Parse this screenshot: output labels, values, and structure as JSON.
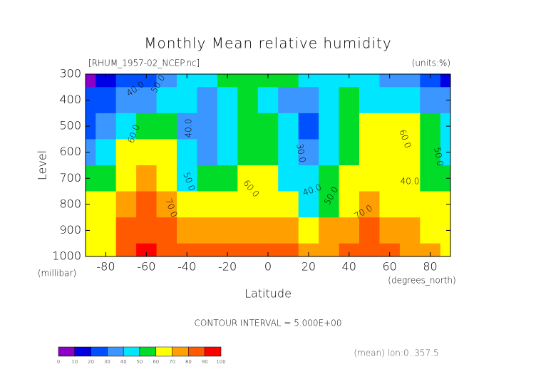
{
  "chart_data": {
    "type": "contour",
    "title": "Monthly Mean relative humidity",
    "subtitle": "[RHUM_1957-02_NCEP.nc]",
    "units_label": "(units:%)",
    "y_label": "Level",
    "y_unit": "(millibar)",
    "x_label": "Latitude",
    "x_unit": "(degrees_north)",
    "contour_interval": "CONTOUR INTERVAL = 5.000E+00",
    "footnote": "(mean) lon:0..357.5",
    "xlim": [
      -90,
      90
    ],
    "xticks": [
      -80,
      -60,
      -40,
      -20,
      0,
      20,
      40,
      60,
      80
    ],
    "ylim": [
      1000,
      300
    ],
    "yticks": [
      300,
      400,
      500,
      600,
      700,
      800,
      900,
      1000
    ],
    "x": [
      -90,
      -80,
      -70,
      -60,
      -50,
      -40,
      -30,
      -20,
      -10,
      0,
      10,
      20,
      30,
      40,
      50,
      60,
      70,
      80,
      90
    ],
    "y": [
      300,
      400,
      500,
      600,
      700,
      800,
      900,
      1000
    ],
    "z": [
      [
        5,
        15,
        20,
        25,
        35,
        45,
        45,
        50,
        55,
        52,
        50,
        45,
        45,
        45,
        40,
        35,
        30,
        25,
        15
      ],
      [
        25,
        25,
        30,
        35,
        45,
        40,
        35,
        40,
        50,
        48,
        38,
        35,
        45,
        50,
        45,
        42,
        40,
        35,
        30
      ],
      [
        25,
        30,
        40,
        50,
        55,
        38,
        35,
        40,
        50,
        50,
        40,
        28,
        45,
        55,
        62,
        65,
        60,
        50,
        40
      ],
      [
        30,
        45,
        60,
        65,
        60,
        40,
        36,
        40,
        55,
        50,
        40,
        32,
        47,
        58,
        65,
        68,
        62,
        55,
        45
      ],
      [
        50,
        55,
        65,
        72,
        65,
        48,
        50,
        55,
        60,
        60,
        48,
        40,
        50,
        60,
        65,
        66,
        62,
        58,
        55
      ],
      [
        60,
        60,
        72,
        80,
        75,
        60,
        60,
        62,
        68,
        65,
        60,
        48,
        55,
        65,
        70,
        68,
        65,
        62,
        60
      ],
      [
        65,
        65,
        82,
        85,
        80,
        72,
        70,
        72,
        75,
        78,
        70,
        62,
        70,
        72,
        80,
        75,
        70,
        65,
        62
      ],
      [
        65,
        60,
        88,
        90,
        85,
        80,
        85,
        82,
        82,
        82,
        80,
        78,
        72,
        80,
        82,
        82,
        75,
        70,
        65
      ]
    ],
    "levels": [
      0,
      10,
      20,
      30,
      40,
      50,
      60,
      70,
      80,
      90,
      100
    ],
    "colors": [
      "#8c00c8",
      "#0000e6",
      "#0050ff",
      "#3c96ff",
      "#00e6ff",
      "#00dc28",
      "#ffff00",
      "#ffa000",
      "#ff5a00",
      "#ff0000"
    ],
    "contour_labels": [
      "40.0",
      "50.0",
      "60.0",
      "70.0",
      "40.0",
      "50.0",
      "30.0",
      "40.0",
      "60.0",
      "50.0",
      "70.0",
      "60.0",
      "50.0",
      "40.0"
    ]
  }
}
